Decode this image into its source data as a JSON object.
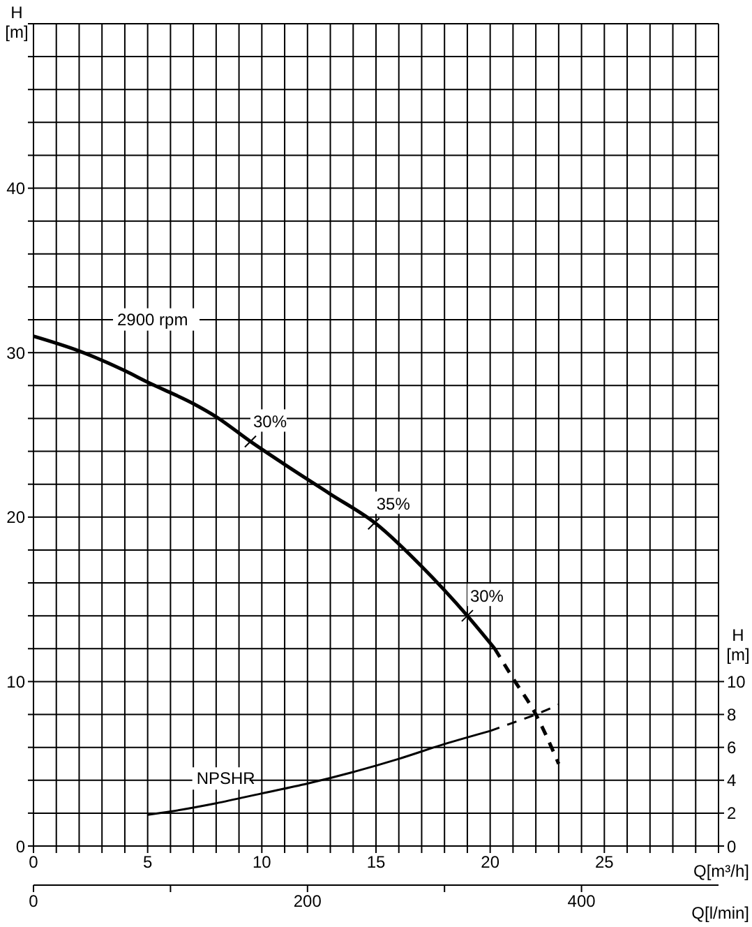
{
  "chart_data": {
    "type": "line",
    "xlabel": "Q[m³/h]",
    "ylabel": "H [m]",
    "y2label": "H [m]",
    "x2label": "Q[l/min]",
    "xlim": [
      0,
      30
    ],
    "xticks": [
      0,
      {
        "value": 1,
        "label": null
      },
      {
        "value": 2,
        "label": null
      },
      {
        "value": 3,
        "label": null
      },
      {
        "value": 4,
        "label": null
      },
      5,
      {
        "value": 6,
        "label": null
      },
      {
        "value": 7,
        "label": null
      },
      {
        "value": 8,
        "label": null
      },
      {
        "value": 9,
        "label": null
      },
      10,
      {
        "value": 11,
        "label": null
      },
      {
        "value": 12,
        "label": null
      },
      {
        "value": 13,
        "label": null
      },
      {
        "value": 14,
        "label": null
      },
      15,
      {
        "value": 16,
        "label": null
      },
      {
        "value": 17,
        "label": null
      },
      {
        "value": 18,
        "label": null
      },
      {
        "value": 19,
        "label": null
      },
      20,
      {
        "value": 21,
        "label": null
      },
      {
        "value": 22,
        "label": null
      },
      {
        "value": 23,
        "label": null
      },
      {
        "value": 24,
        "label": null
      },
      25,
      {
        "value": 26,
        "label": null
      },
      {
        "value": 27,
        "label": null
      },
      {
        "value": 28,
        "label": null
      },
      {
        "value": 29,
        "label": null
      },
      {
        "value": 30,
        "label": null
      }
    ],
    "ylim": [
      0,
      50
    ],
    "yticks": [
      0,
      {
        "value": 2,
        "label": null
      },
      {
        "value": 4,
        "label": null
      },
      {
        "value": 6,
        "label": null
      },
      {
        "value": 8,
        "label": null
      },
      10,
      {
        "value": 12,
        "label": null
      },
      {
        "value": 14,
        "label": null
      },
      {
        "value": 16,
        "label": null
      },
      {
        "value": 18,
        "label": null
      },
      20,
      {
        "value": 22,
        "label": null
      },
      {
        "value": 24,
        "label": null
      },
      {
        "value": 26,
        "label": null
      },
      {
        "value": 28,
        "label": null
      },
      30,
      {
        "value": 32,
        "label": null
      },
      {
        "value": 34,
        "label": null
      },
      {
        "value": 36,
        "label": null
      },
      {
        "value": 38,
        "label": null
      },
      40,
      {
        "value": 42,
        "label": null
      },
      {
        "value": 44,
        "label": null
      },
      {
        "value": 46,
        "label": null
      },
      {
        "value": 48,
        "label": null
      },
      {
        "value": 50,
        "label": null
      }
    ],
    "y2lim": [
      0,
      50
    ],
    "y2ticks": [
      0,
      2,
      4,
      6,
      8,
      10
    ],
    "x2lim": [
      0,
      500
    ],
    "x2ticks": [
      0,
      {
        "value": 100,
        "label": null
      },
      200,
      {
        "value": 300,
        "label": null
      },
      400
    ],
    "grid": true,
    "legend": false,
    "marker": "none",
    "series": [
      {
        "name": "2900 rpm",
        "color": "#000000",
        "line_style": "solid",
        "x": [
          0,
          2,
          4,
          5,
          7,
          8,
          9.5,
          11,
          13,
          15,
          17,
          19,
          20.2
        ],
        "values": [
          31,
          30.1,
          28.9,
          28.2,
          26.9,
          26.1,
          24.6,
          23.2,
          21.4,
          19.6,
          17.0,
          14.0,
          12.0
        ]
      },
      {
        "color": "#000000",
        "line_style": "dashed",
        "x": [
          20.2,
          21,
          22,
          23
        ],
        "values": [
          12.0,
          10.2,
          8.0,
          5.0
        ]
      },
      {
        "name": "NPSHR",
        "color": "#000000",
        "axis": "y2",
        "line_style": "solid",
        "x": [
          5,
          6,
          8,
          10,
          12,
          14,
          16,
          18,
          20
        ],
        "values": [
          1.9,
          2.1,
          2.6,
          3.2,
          3.8,
          4.5,
          5.3,
          6.2,
          7.0
        ]
      },
      {
        "color": "#000000",
        "axis": "y2",
        "line_style": "dashed",
        "x": [
          20,
          21,
          22,
          23
        ],
        "values": [
          7.0,
          7.5,
          8.0,
          8.6
        ]
      }
    ],
    "annotations": [
      {
        "text": "30%",
        "x": 9.5,
        "y": 24.6
      },
      {
        "text": "35%",
        "x": 14.9,
        "y": 19.6
      },
      {
        "text": "30%",
        "x": 19,
        "y": 14.0
      }
    ]
  }
}
